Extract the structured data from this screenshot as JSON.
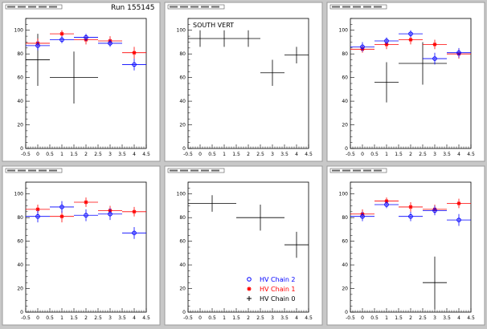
{
  "run_label": "Run 155145",
  "legend": {
    "entries": [
      {
        "label": "HV Chain 2",
        "marker": "circle",
        "color": "#0000ff"
      },
      {
        "label": "HV Chain 1",
        "marker": "star",
        "color": "#ff0000"
      },
      {
        "label": "HV Chain 0",
        "marker": "cross",
        "color": "#000000"
      }
    ]
  },
  "colors": {
    "background": "#c8c8c8",
    "pad": "#ffffff",
    "chain2": "#0000ff",
    "chain1": "#ff0000",
    "chain0": "#000000"
  },
  "chart_data": [
    {
      "type": "scatter",
      "title": "",
      "xlim": [
        -0.5,
        4.5
      ],
      "ylim": [
        0,
        110
      ],
      "xticks": [
        "-0.5",
        "0",
        "0.5",
        "1",
        "1.5",
        "2",
        "2.5",
        "3",
        "3.5",
        "4",
        "4.5"
      ],
      "yticks": [
        "0",
        "20",
        "40",
        "60",
        "80",
        "100"
      ],
      "series": [
        {
          "name": "HV Chain 0",
          "points": [
            {
              "x": 0,
              "y": 75,
              "xerr": 0.5,
              "yerr": 22
            },
            {
              "x": 1.5,
              "y": 60,
              "xerr": 1,
              "yerr": 22
            }
          ]
        },
        {
          "name": "HV Chain 1",
          "points": [
            {
              "x": 0,
              "y": 89,
              "xerr": 0.5,
              "yerr": 4
            },
            {
              "x": 1,
              "y": 97,
              "xerr": 0.5,
              "yerr": 3
            },
            {
              "x": 2,
              "y": 92,
              "xerr": 0.5,
              "yerr": 4
            },
            {
              "x": 3,
              "y": 91,
              "xerr": 0.5,
              "yerr": 4
            },
            {
              "x": 4,
              "y": 81,
              "xerr": 0.5,
              "yerr": 5
            }
          ]
        },
        {
          "name": "HV Chain 2",
          "points": [
            {
              "x": 0,
              "y": 87,
              "xerr": 0.5,
              "yerr": 4
            },
            {
              "x": 1,
              "y": 92,
              "xerr": 0.5,
              "yerr": 3
            },
            {
              "x": 2,
              "y": 94,
              "xerr": 0.5,
              "yerr": 3
            },
            {
              "x": 3,
              "y": 89,
              "xerr": 0.5,
              "yerr": 3
            },
            {
              "x": 4,
              "y": 71,
              "xerr": 0.5,
              "yerr": 5
            }
          ]
        }
      ]
    },
    {
      "type": "scatter",
      "title": "SOUTH VERT",
      "xlim": [
        -0.5,
        4.5
      ],
      "ylim": [
        0,
        110
      ],
      "xticks": [
        "-0.5",
        "0",
        "0.5",
        "1",
        "1.5",
        "2",
        "2.5",
        "3",
        "3.5",
        "4",
        "4.5"
      ],
      "yticks": [
        "0",
        "20",
        "40",
        "60",
        "80",
        "100"
      ],
      "series": [
        {
          "name": "HV Chain 0",
          "points": [
            {
              "x": 0,
              "y": 93,
              "xerr": 0.5,
              "yerr": 7
            },
            {
              "x": 1,
              "y": 93,
              "xerr": 0.5,
              "yerr": 7
            },
            {
              "x": 2,
              "y": 93,
              "xerr": 0.5,
              "yerr": 7
            },
            {
              "x": 3,
              "y": 64,
              "xerr": 0.5,
              "yerr": 11
            },
            {
              "x": 4,
              "y": 79,
              "xerr": 0.5,
              "yerr": 7
            }
          ]
        }
      ]
    },
    {
      "type": "scatter",
      "title": "",
      "xlim": [
        -0.5,
        4.5
      ],
      "ylim": [
        0,
        110
      ],
      "xticks": [
        "-0.5",
        "0",
        "0.5",
        "1",
        "1.5",
        "2",
        "2.5",
        "3",
        "3.5",
        "4",
        "4.5"
      ],
      "yticks": [
        "0",
        "20",
        "40",
        "60",
        "80",
        "100"
      ],
      "series": [
        {
          "name": "HV Chain 0",
          "points": [
            {
              "x": 1,
              "y": 56,
              "xerr": 0.5,
              "yerr": 17
            },
            {
              "x": 2.5,
              "y": 72,
              "xerr": 1,
              "yerr": 18
            }
          ]
        },
        {
          "name": "HV Chain 1",
          "points": [
            {
              "x": 0,
              "y": 84,
              "xerr": 0.5,
              "yerr": 3
            },
            {
              "x": 1,
              "y": 88,
              "xerr": 0.5,
              "yerr": 4
            },
            {
              "x": 2,
              "y": 92,
              "xerr": 0.5,
              "yerr": 4
            },
            {
              "x": 3,
              "y": 88,
              "xerr": 0.5,
              "yerr": 4
            },
            {
              "x": 4,
              "y": 80,
              "xerr": 0.5,
              "yerr": 4
            }
          ]
        },
        {
          "name": "HV Chain 2",
          "points": [
            {
              "x": 0,
              "y": 86,
              "xerr": 0.5,
              "yerr": 4
            },
            {
              "x": 1,
              "y": 91,
              "xerr": 0.5,
              "yerr": 3
            },
            {
              "x": 2,
              "y": 97,
              "xerr": 0.5,
              "yerr": 3
            },
            {
              "x": 3,
              "y": 76,
              "xerr": 0.5,
              "yerr": 5
            },
            {
              "x": 4,
              "y": 81,
              "xerr": 0.5,
              "yerr": 4
            }
          ]
        }
      ]
    },
    {
      "type": "scatter",
      "title": "",
      "xlim": [
        -0.5,
        4.5
      ],
      "ylim": [
        0,
        110
      ],
      "xticks": [
        "-0.5",
        "0",
        "0.5",
        "1",
        "1.5",
        "2",
        "2.5",
        "3",
        "3.5",
        "4",
        "4.5"
      ],
      "yticks": [
        "0",
        "20",
        "40",
        "60",
        "80",
        "100"
      ],
      "series": [
        {
          "name": "HV Chain 1",
          "points": [
            {
              "x": 0,
              "y": 87,
              "xerr": 0.5,
              "yerr": 4
            },
            {
              "x": 1,
              "y": 81,
              "xerr": 0.5,
              "yerr": 5
            },
            {
              "x": 2,
              "y": 93,
              "xerr": 0.5,
              "yerr": 4
            },
            {
              "x": 3,
              "y": 86,
              "xerr": 0.5,
              "yerr": 4
            },
            {
              "x": 4,
              "y": 85,
              "xerr": 0.5,
              "yerr": 4
            }
          ]
        },
        {
          "name": "HV Chain 2",
          "points": [
            {
              "x": 0,
              "y": 81,
              "xerr": 0.5,
              "yerr": 5
            },
            {
              "x": 1,
              "y": 89,
              "xerr": 0.5,
              "yerr": 5
            },
            {
              "x": 2,
              "y": 82,
              "xerr": 0.5,
              "yerr": 5
            },
            {
              "x": 3,
              "y": 83,
              "xerr": 0.5,
              "yerr": 5
            },
            {
              "x": 4,
              "y": 67,
              "xerr": 0.5,
              "yerr": 5
            }
          ]
        }
      ]
    },
    {
      "type": "scatter",
      "title": "",
      "xlim": [
        -0.5,
        4.5
      ],
      "ylim": [
        0,
        110
      ],
      "xticks": [
        "-0.5",
        "0",
        "0.5",
        "1",
        "1.5",
        "2",
        "2.5",
        "3",
        "3.5",
        "4",
        "4.5"
      ],
      "yticks": [
        "0",
        "20",
        "40",
        "60",
        "80",
        "100"
      ],
      "series": [
        {
          "name": "HV Chain 0",
          "points": [
            {
              "x": 0.5,
              "y": 92,
              "xerr": 1,
              "yerr": 7
            },
            {
              "x": 2.5,
              "y": 80,
              "xerr": 1,
              "yerr": 11
            },
            {
              "x": 4,
              "y": 57,
              "xerr": 0.5,
              "yerr": 11
            }
          ]
        }
      ]
    },
    {
      "type": "scatter",
      "title": "",
      "xlim": [
        -0.5,
        4.5
      ],
      "ylim": [
        0,
        110
      ],
      "xticks": [
        "-0.5",
        "0",
        "0.5",
        "1",
        "1.5",
        "2",
        "2.5",
        "3",
        "3.5",
        "4",
        "4.5"
      ],
      "yticks": [
        "0",
        "20",
        "40",
        "60",
        "80",
        "100"
      ],
      "series": [
        {
          "name": "HV Chain 0",
          "points": [
            {
              "x": 3,
              "y": 25,
              "xerr": 0.5,
              "yerr": 22
            }
          ]
        },
        {
          "name": "HV Chain 1",
          "points": [
            {
              "x": 0,
              "y": 83,
              "xerr": 0.5,
              "yerr": 4
            },
            {
              "x": 1,
              "y": 94,
              "xerr": 0.5,
              "yerr": 3
            },
            {
              "x": 2,
              "y": 89,
              "xerr": 0.5,
              "yerr": 4
            },
            {
              "x": 3,
              "y": 87,
              "xerr": 0.5,
              "yerr": 4
            },
            {
              "x": 4,
              "y": 92,
              "xerr": 0.5,
              "yerr": 4
            }
          ]
        },
        {
          "name": "HV Chain 2",
          "points": [
            {
              "x": 0,
              "y": 81,
              "xerr": 0.5,
              "yerr": 4
            },
            {
              "x": 1,
              "y": 91,
              "xerr": 0.5,
              "yerr": 3
            },
            {
              "x": 2,
              "y": 81,
              "xerr": 0.5,
              "yerr": 4
            },
            {
              "x": 3,
              "y": 86,
              "xerr": 0.5,
              "yerr": 4
            },
            {
              "x": 4,
              "y": 78,
              "xerr": 0.5,
              "yerr": 5
            }
          ]
        }
      ]
    }
  ]
}
